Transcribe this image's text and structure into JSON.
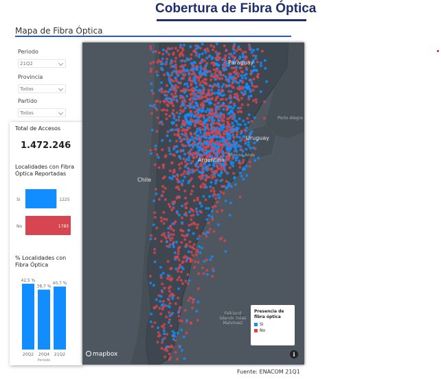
{
  "header": {
    "title": "Cobertura de Fibra Óptica"
  },
  "section": {
    "title": "Mapa de Fibra Óptica"
  },
  "filters": [
    {
      "label": "Periodo",
      "value": "21Q2"
    },
    {
      "label": "Provincia",
      "value": "Todas"
    },
    {
      "label": "Partido",
      "value": "Todas"
    }
  ],
  "kpi": {
    "total_label": "Total de Accesos",
    "total_value": "1.472.246"
  },
  "chart_data": [
    {
      "type": "bar",
      "orientation": "horizontal",
      "title": "Localidades con Fibra Óptica Reportadas",
      "categories": [
        "Si",
        "No"
      ],
      "values": [
        1225,
        1783
      ],
      "data_labels": [
        "1225",
        "1783"
      ],
      "colors": [
        "#118dff",
        "#d64550"
      ]
    },
    {
      "type": "bar",
      "orientation": "vertical",
      "title": "% Localidades con Fibra Óptica",
      "xlabel": "Periodo",
      "categories": [
        "20Q2",
        "20Q4",
        "21Q2"
      ],
      "values": [
        42.5,
        38.7,
        40.7
      ],
      "data_labels": [
        "42,5 %",
        "38,7 %",
        "40,7 %"
      ],
      "colors": [
        "#118dff"
      ]
    }
  ],
  "map": {
    "labels": [
      "Paraguay",
      "Uruguay",
      "Argentina",
      "Chile",
      "Porto Alegre",
      "Buenos Aires",
      "Falkland Islands (Islas Malvinas)"
    ],
    "attribution": "mapbox",
    "info": "i",
    "legend": {
      "title": "Presencia de fibra óptica",
      "items": [
        {
          "label": "Si",
          "color": "#118dff"
        },
        {
          "label": "No",
          "color": "#d64550"
        }
      ]
    }
  },
  "footer": {
    "source": "Fuente: ENACOM 21Q1"
  }
}
